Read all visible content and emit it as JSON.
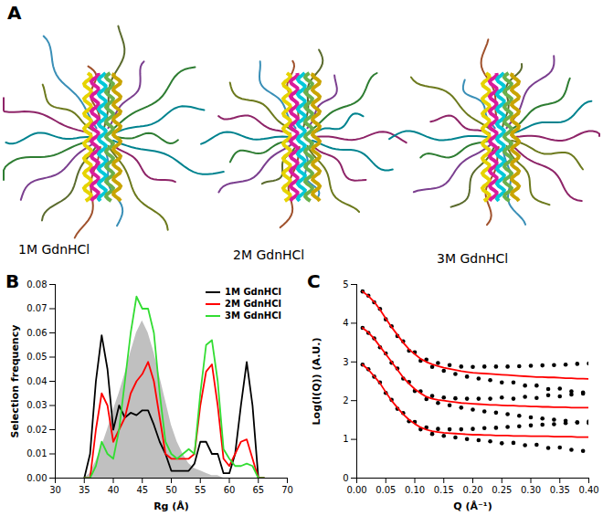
{
  "panel_a": {
    "panel_label": "A",
    "captions": [
      "1M GdnHCl",
      "2M GdnHCl",
      "3M GdnHCl"
    ]
  },
  "chart_data": [
    {
      "panel_label": "B",
      "type": "line",
      "xlabel": "Rg (Å)",
      "ylabel": "Selection frequency",
      "xlim": [
        30,
        70
      ],
      "xticks": [
        30,
        35,
        40,
        45,
        50,
        55,
        60,
        65,
        70
      ],
      "ylim": [
        0,
        0.08
      ],
      "yticks": [
        {
          "value": 0,
          "label": "0.00"
        },
        {
          "value": 0.01,
          "label": "0.01"
        },
        {
          "value": 0.02,
          "label": "0.02"
        },
        {
          "value": 0.03,
          "label": "0.03"
        },
        {
          "value": 0.04,
          "label": "0.04"
        },
        {
          "value": 0.05,
          "label": "0.05"
        },
        {
          "value": 0.06,
          "label": "0.06"
        },
        {
          "value": 0.07,
          "label": "0.07"
        },
        {
          "value": 0.08,
          "label": "0.08"
        }
      ],
      "grid": false,
      "legend": "top-right",
      "x": [
        35,
        36,
        37,
        38,
        39,
        40,
        41,
        42,
        43,
        44,
        45,
        46,
        47,
        48,
        49,
        50,
        51,
        52,
        53,
        54,
        55,
        56,
        57,
        58,
        59,
        60,
        61,
        62,
        63,
        64,
        65,
        66
      ],
      "series": [
        {
          "type": "area",
          "color": "#c0c0c0",
          "values": [
            0,
            0.002,
            0.007,
            0.013,
            0.02,
            0.028,
            0.035,
            0.043,
            0.052,
            0.06,
            0.065,
            0.06,
            0.052,
            0.042,
            0.032,
            0.022,
            0.015,
            0.01,
            0.006,
            0.004,
            0.003,
            0.002,
            0.001,
            0.001,
            0,
            0,
            0,
            0,
            0,
            0,
            0,
            0
          ]
        },
        {
          "name": "1M GdnHCl",
          "type": "line",
          "color": "#000000",
          "values": [
            0,
            0.01,
            0.04,
            0.059,
            0.045,
            0.02,
            0.03,
            0.025,
            0.027,
            0.026,
            0.028,
            0.028,
            0.022,
            0.015,
            0.01,
            0.003,
            0.003,
            0.003,
            0.003,
            0.006,
            0.015,
            0.015,
            0.01,
            0.01,
            0.002,
            0.002,
            0.01,
            0.03,
            0.048,
            0.03,
            0,
            0
          ]
        },
        {
          "name": "2M GdnHCl",
          "type": "line",
          "color": "#ff0000",
          "values": [
            0,
            0,
            0.02,
            0.035,
            0.03,
            0.015,
            0.02,
            0.025,
            0.035,
            0.04,
            0.043,
            0.048,
            0.04,
            0.025,
            0.01,
            0.008,
            0.008,
            0.008,
            0.008,
            0.01,
            0.03,
            0.044,
            0.047,
            0.03,
            0.008,
            0.005,
            0.01,
            0.015,
            0.016,
            0.008,
            0,
            0
          ]
        },
        {
          "name": "3M GdnHCl",
          "type": "line",
          "color": "#33dd33",
          "values": [
            0,
            0,
            0.005,
            0.015,
            0.01,
            0.008,
            0.02,
            0.04,
            0.06,
            0.075,
            0.07,
            0.07,
            0.06,
            0.035,
            0.015,
            0.01,
            0.008,
            0.01,
            0.012,
            0.01,
            0.035,
            0.055,
            0.057,
            0.04,
            0.012,
            0.008,
            0.005,
            0.005,
            0.006,
            0.005,
            0,
            0
          ]
        }
      ]
    },
    {
      "panel_label": "C",
      "type": "scatter",
      "xlabel": "Q (Å⁻¹)",
      "ylabel": "Log(I(Q)) (A.U.)",
      "xlim": [
        0,
        0.4
      ],
      "xticks": [
        {
          "value": 0,
          "label": "0.00"
        },
        {
          "value": 0.05,
          "label": "0.05"
        },
        {
          "value": 0.1,
          "label": "0.10"
        },
        {
          "value": 0.15,
          "label": "0.15"
        },
        {
          "value": 0.2,
          "label": "0.20"
        },
        {
          "value": 0.25,
          "label": "0.25"
        },
        {
          "value": 0.3,
          "label": "0.30"
        },
        {
          "value": 0.35,
          "label": "0.35"
        },
        {
          "value": 0.4,
          "label": "0.40"
        }
      ],
      "ylim": [
        0,
        5
      ],
      "yticks": [
        0,
        1,
        2,
        3,
        4,
        5
      ],
      "grid": false,
      "x": [
        0.01,
        0.02,
        0.03,
        0.04,
        0.05,
        0.06,
        0.07,
        0.08,
        0.09,
        0.1,
        0.11,
        0.12,
        0.13,
        0.14,
        0.15,
        0.16,
        0.17,
        0.18,
        0.19,
        0.2,
        0.21,
        0.22,
        0.23,
        0.24,
        0.25,
        0.26,
        0.27,
        0.28,
        0.29,
        0.3,
        0.31,
        0.32,
        0.33,
        0.34,
        0.35,
        0.36,
        0.37,
        0.38,
        0.39,
        0.4
      ],
      "series": [
        {
          "type": "scatter",
          "marker": "circle",
          "color": "#000000",
          "values": [
            4.82,
            4.71,
            4.54,
            4.37,
            4.1,
            3.92,
            3.67,
            3.53,
            3.29,
            3.25,
            3.03,
            3.06,
            2.87,
            2.97,
            2.77,
            2.92,
            2.69,
            2.88,
            2.62,
            2.87,
            2.57,
            2.88,
            2.53,
            2.88,
            2.47,
            2.88,
            2.47,
            2.89,
            2.39,
            2.9,
            2.39,
            2.91,
            2.3,
            2.92,
            2.31,
            2.93,
            2.24,
            2.95,
            2.21,
            2.96
          ]
        },
        {
          "type": "scatter",
          "marker": "circle",
          "color": "#000000",
          "values": [
            3.88,
            3.75,
            3.61,
            3.38,
            3.22,
            2.98,
            2.83,
            2.57,
            2.48,
            2.25,
            2.24,
            2.04,
            2.12,
            1.94,
            2.08,
            1.88,
            2.06,
            1.82,
            2.05,
            1.77,
            2.05,
            1.72,
            2.05,
            1.69,
            2.08,
            1.65,
            2.05,
            1.61,
            2.1,
            1.57,
            2.07,
            1.54,
            2.14,
            1.51,
            2.11,
            1.48,
            2.16,
            1.44,
            2.18,
            1.42
          ]
        },
        {
          "type": "scatter",
          "marker": "circle",
          "color": "#000000",
          "values": [
            2.93,
            2.81,
            2.62,
            2.47,
            2.2,
            2.02,
            1.79,
            1.68,
            1.47,
            1.45,
            1.26,
            1.31,
            1.14,
            1.27,
            1.09,
            1.26,
            1.05,
            1.26,
            1.01,
            1.27,
            0.98,
            1.29,
            0.95,
            1.3,
            0.9,
            1.32,
            0.91,
            1.34,
            0.85,
            1.36,
            0.86,
            1.38,
            0.78,
            1.39,
            0.79,
            1.42,
            0.73,
            1.44,
            0.7,
            1.46
          ]
        },
        {
          "type": "line",
          "color": "#ff0000",
          "values": [
            4.82,
            4.7,
            4.55,
            4.35,
            4.12,
            3.9,
            3.7,
            3.5,
            3.33,
            3.2,
            3.08,
            3.0,
            2.94,
            2.89,
            2.85,
            2.82,
            2.79,
            2.76,
            2.74,
            2.72,
            2.71,
            2.7,
            2.69,
            2.68,
            2.67,
            2.66,
            2.65,
            2.64,
            2.63,
            2.62,
            2.61,
            2.61,
            2.6,
            2.6,
            2.59,
            2.58,
            2.58,
            2.57,
            2.57,
            2.56
          ]
        },
        {
          "type": "line",
          "color": "#ff0000",
          "values": [
            3.88,
            3.76,
            3.6,
            3.4,
            3.2,
            3.0,
            2.8,
            2.6,
            2.44,
            2.3,
            2.19,
            2.1,
            2.05,
            2.02,
            2.0,
            1.98,
            1.96,
            1.94,
            1.93,
            1.92,
            1.91,
            1.9,
            1.89,
            1.89,
            1.88,
            1.87,
            1.87,
            1.86,
            1.86,
            1.85,
            1.85,
            1.84,
            1.84,
            1.83,
            1.83,
            1.83,
            1.82,
            1.82,
            1.82,
            1.82
          ]
        },
        {
          "type": "line",
          "color": "#ff0000",
          "values": [
            2.93,
            2.8,
            2.63,
            2.45,
            2.22,
            2.0,
            1.82,
            1.65,
            1.51,
            1.4,
            1.31,
            1.25,
            1.21,
            1.19,
            1.17,
            1.16,
            1.15,
            1.14,
            1.13,
            1.12,
            1.12,
            1.11,
            1.11,
            1.1,
            1.1,
            1.1,
            1.09,
            1.09,
            1.09,
            1.08,
            1.08,
            1.08,
            1.08,
            1.07,
            1.07,
            1.07,
            1.07,
            1.06,
            1.06,
            1.06
          ]
        }
      ]
    }
  ]
}
